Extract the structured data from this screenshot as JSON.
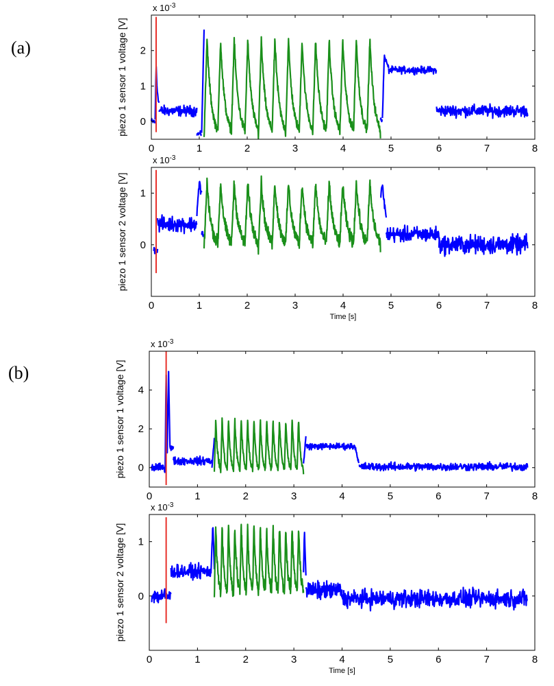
{
  "chart_data": [
    {
      "type": "line",
      "panel": "(a)",
      "panel_label": "(a)",
      "scale_base": "x 10",
      "scale_exp": "-3",
      "ylabel": "piezo 1 sensor 1 voltage [V]",
      "xlabel": "",
      "xlim": [
        0,
        8
      ],
      "ylim": [
        -0.5,
        3
      ],
      "xticks": [
        0,
        1,
        2,
        3,
        4,
        5,
        6,
        7,
        8
      ],
      "xtick_labels": [
        "0",
        "1",
        "2",
        "3",
        "4",
        "5",
        "6",
        "7",
        "8"
      ],
      "yticks": [
        0,
        1,
        2
      ],
      "ytick_labels": [
        "0",
        "1",
        "2"
      ],
      "marker_x": 0.1,
      "marker_y": [
        -0.3,
        2.95
      ],
      "colors": {
        "signal": "#0000ff",
        "cycles": "#1a8f1a",
        "marker": "#e8302a"
      },
      "series": [
        {
          "name": "signal",
          "segments": [
            {
              "x0": 0.0,
              "x1": 0.08,
              "mean": 0.0,
              "noise": 0.12
            },
            {
              "x0": 0.08,
              "x1": 0.16,
              "points": [
                [
                  0.08,
                  0.0
                ],
                [
                  0.1,
                  1.6
                ],
                [
                  0.12,
                  0.9
                ],
                [
                  0.16,
                  0.5
                ]
              ],
              "noise": 0.1
            },
            {
              "x0": 0.16,
              "x1": 0.95,
              "mean": 0.3,
              "noise": 0.18
            },
            {
              "x0": 0.95,
              "x1": 1.05,
              "mean": -0.35,
              "noise": 0.08
            },
            {
              "x0": 1.05,
              "x1": 1.1,
              "points": [
                [
                  1.05,
                  -0.3
                ],
                [
                  1.1,
                  2.6
                ]
              ],
              "noise": 0.05
            },
            {
              "x0": 4.78,
              "x1": 4.82,
              "mean": 0.05,
              "noise": 0.1
            },
            {
              "x0": 4.82,
              "x1": 4.95,
              "points": [
                [
                  4.82,
                  0.1
                ],
                [
                  4.86,
                  1.85
                ],
                [
                  4.95,
                  1.5
                ]
              ],
              "noise": 0.08
            },
            {
              "x0": 4.95,
              "x1": 5.95,
              "mean": 1.45,
              "noise": 0.12
            },
            {
              "x0": 5.95,
              "x1": 7.85,
              "mean": 0.3,
              "noise": 0.2
            }
          ]
        },
        {
          "name": "cycles",
          "segments": [
            {
              "x0": 1.1,
              "x1": 4.78,
              "cycles": 13,
              "low": -0.45,
              "high": 2.3,
              "noise": 0.15
            }
          ]
        }
      ]
    },
    {
      "type": "line",
      "panel": "(a)",
      "scale_base": "x 10",
      "scale_exp": "-3",
      "ylabel": "piezo 1 sensor 2 voltage [V]",
      "xlabel": "Time [s]",
      "xlim": [
        0,
        8
      ],
      "ylim": [
        -1,
        1.5
      ],
      "xticks": [
        0,
        1,
        2,
        3,
        4,
        5,
        6,
        7,
        8
      ],
      "xtick_labels": [
        "0",
        "1",
        "2",
        "3",
        "4",
        "5",
        "6",
        "7",
        "8"
      ],
      "yticks": [
        0,
        1
      ],
      "ytick_labels": [
        "0",
        "1"
      ],
      "marker_x": 0.1,
      "marker_y": [
        -0.55,
        1.45
      ],
      "colors": {
        "signal": "#0000ff",
        "cycles": "#1a8f1a",
        "marker": "#e8302a"
      },
      "series": [
        {
          "name": "signal",
          "segments": [
            {
              "x0": 0.05,
              "x1": 0.13,
              "mean": -0.1,
              "noise": 0.08
            },
            {
              "x0": 0.13,
              "x1": 0.95,
              "mean": 0.4,
              "noise": 0.18
            },
            {
              "x0": 0.95,
              "x1": 1.05,
              "points": [
                [
                  0.95,
                  0.6
                ],
                [
                  1.0,
                  1.2
                ],
                [
                  1.05,
                  1.0
                ]
              ],
              "noise": 0.1
            },
            {
              "x0": 1.05,
              "x1": 1.1,
              "mean": 0.2,
              "noise": 0.1
            },
            {
              "x0": 4.78,
              "x1": 4.9,
              "points": [
                [
                  4.78,
                  0.9
                ],
                [
                  4.82,
                  1.15
                ],
                [
                  4.9,
                  0.5
                ]
              ],
              "noise": 0.1
            },
            {
              "x0": 4.9,
              "x1": 6.0,
              "mean": 0.2,
              "noise": 0.18
            },
            {
              "x0": 6.0,
              "x1": 7.85,
              "mean": 0.0,
              "noise": 0.22
            }
          ]
        },
        {
          "name": "cycles",
          "segments": [
            {
              "x0": 1.1,
              "x1": 4.78,
              "cycles": 13,
              "low": -0.05,
              "high": 1.2,
              "noise": 0.15
            }
          ]
        }
      ]
    },
    {
      "type": "line",
      "panel": "(b)",
      "panel_label": "(b)",
      "scale_base": "x 10",
      "scale_exp": "-3",
      "ylabel": "piezo 1 sensor 1 voltage [V]",
      "xlabel": "",
      "xlim": [
        0,
        8
      ],
      "ylim": [
        -1,
        6
      ],
      "xticks": [
        0,
        1,
        2,
        3,
        4,
        5,
        6,
        7,
        8
      ],
      "xtick_labels": [
        "0",
        "1",
        "2",
        "3",
        "4",
        "5",
        "6",
        "7",
        "8"
      ],
      "yticks": [
        0,
        2,
        4
      ],
      "ytick_labels": [
        "0",
        "2",
        "4"
      ],
      "marker_x": 0.35,
      "marker_y": [
        -0.9,
        6.0
      ],
      "colors": {
        "signal": "#0000ff",
        "cycles": "#1a8f1a",
        "marker": "#e8302a"
      },
      "series": [
        {
          "name": "signal",
          "segments": [
            {
              "x0": 0.05,
              "x1": 0.33,
              "mean": 0.0,
              "noise": 0.25
            },
            {
              "x0": 0.33,
              "x1": 0.5,
              "points": [
                [
                  0.33,
                  0.0
                ],
                [
                  0.35,
                  5.1
                ],
                [
                  0.37,
                  0.5
                ],
                [
                  0.4,
                  5.0
                ],
                [
                  0.43,
                  1.0
                ],
                [
                  0.5,
                  1.0
                ]
              ],
              "noise": 0.2
            },
            {
              "x0": 0.5,
              "x1": 1.3,
              "mean": 0.35,
              "noise": 0.25
            },
            {
              "x0": 1.3,
              "x1": 1.35,
              "points": [
                [
                  1.3,
                  0.0
                ],
                [
                  1.35,
                  1.5
                ]
              ],
              "noise": 0.1
            },
            {
              "x0": 3.2,
              "x1": 3.25,
              "points": [
                [
                  3.2,
                  0.2
                ],
                [
                  3.25,
                  1.6
                ]
              ],
              "noise": 0.1
            },
            {
              "x0": 3.25,
              "x1": 4.28,
              "mean": 1.1,
              "noise": 0.2
            },
            {
              "x0": 4.28,
              "x1": 4.35,
              "points": [
                [
                  4.28,
                  1.0
                ],
                [
                  4.35,
                  0.2
                ]
              ],
              "noise": 0.1
            },
            {
              "x0": 4.35,
              "x1": 7.85,
              "mean": 0.05,
              "noise": 0.25
            }
          ]
        },
        {
          "name": "cycles",
          "segments": [
            {
              "x0": 1.35,
              "x1": 3.2,
              "cycles": 14,
              "low": -0.3,
              "high": 2.5,
              "noise": 0.2
            }
          ]
        }
      ]
    },
    {
      "type": "line",
      "panel": "(b)",
      "scale_base": "x 10",
      "scale_exp": "-3",
      "ylabel": "piezo 1 sensor 2 voltage [V]",
      "xlabel": "Time [s]",
      "xlim": [
        0,
        8
      ],
      "ylim": [
        -1,
        1.5
      ],
      "xticks": [
        0,
        1,
        2,
        3,
        4,
        5,
        6,
        7,
        8
      ],
      "xtick_labels": [
        "0",
        "1",
        "2",
        "3",
        "4",
        "5",
        "6",
        "7",
        "8"
      ],
      "yticks": [
        0,
        1
      ],
      "ytick_labels": [
        "0",
        "1"
      ],
      "marker_x": 0.35,
      "marker_y": [
        -0.5,
        1.45
      ],
      "colors": {
        "signal": "#0000ff",
        "cycles": "#1a8f1a",
        "marker": "#e8302a"
      },
      "series": [
        {
          "name": "signal",
          "segments": [
            {
              "x0": 0.05,
              "x1": 0.45,
              "mean": 0.0,
              "noise": 0.18
            },
            {
              "x0": 0.45,
              "x1": 1.28,
              "mean": 0.45,
              "noise": 0.15
            },
            {
              "x0": 1.28,
              "x1": 1.35,
              "points": [
                [
                  1.28,
                  0.4
                ],
                [
                  1.32,
                  1.35
                ],
                [
                  1.35,
                  0.5
                ]
              ],
              "noise": 0.08
            },
            {
              "x0": 3.2,
              "x1": 3.25,
              "points": [
                [
                  3.2,
                  0.5
                ],
                [
                  3.22,
                  1.2
                ],
                [
                  3.25,
                  0.4
                ]
              ],
              "noise": 0.08
            },
            {
              "x0": 3.25,
              "x1": 4.0,
              "mean": 0.1,
              "noise": 0.2
            },
            {
              "x0": 4.0,
              "x1": 7.85,
              "mean": -0.05,
              "noise": 0.2
            }
          ]
        },
        {
          "name": "cycles",
          "segments": [
            {
              "x0": 1.35,
              "x1": 3.2,
              "cycles": 14,
              "low": 0.0,
              "high": 1.3,
              "noise": 0.15
            }
          ]
        }
      ]
    }
  ]
}
